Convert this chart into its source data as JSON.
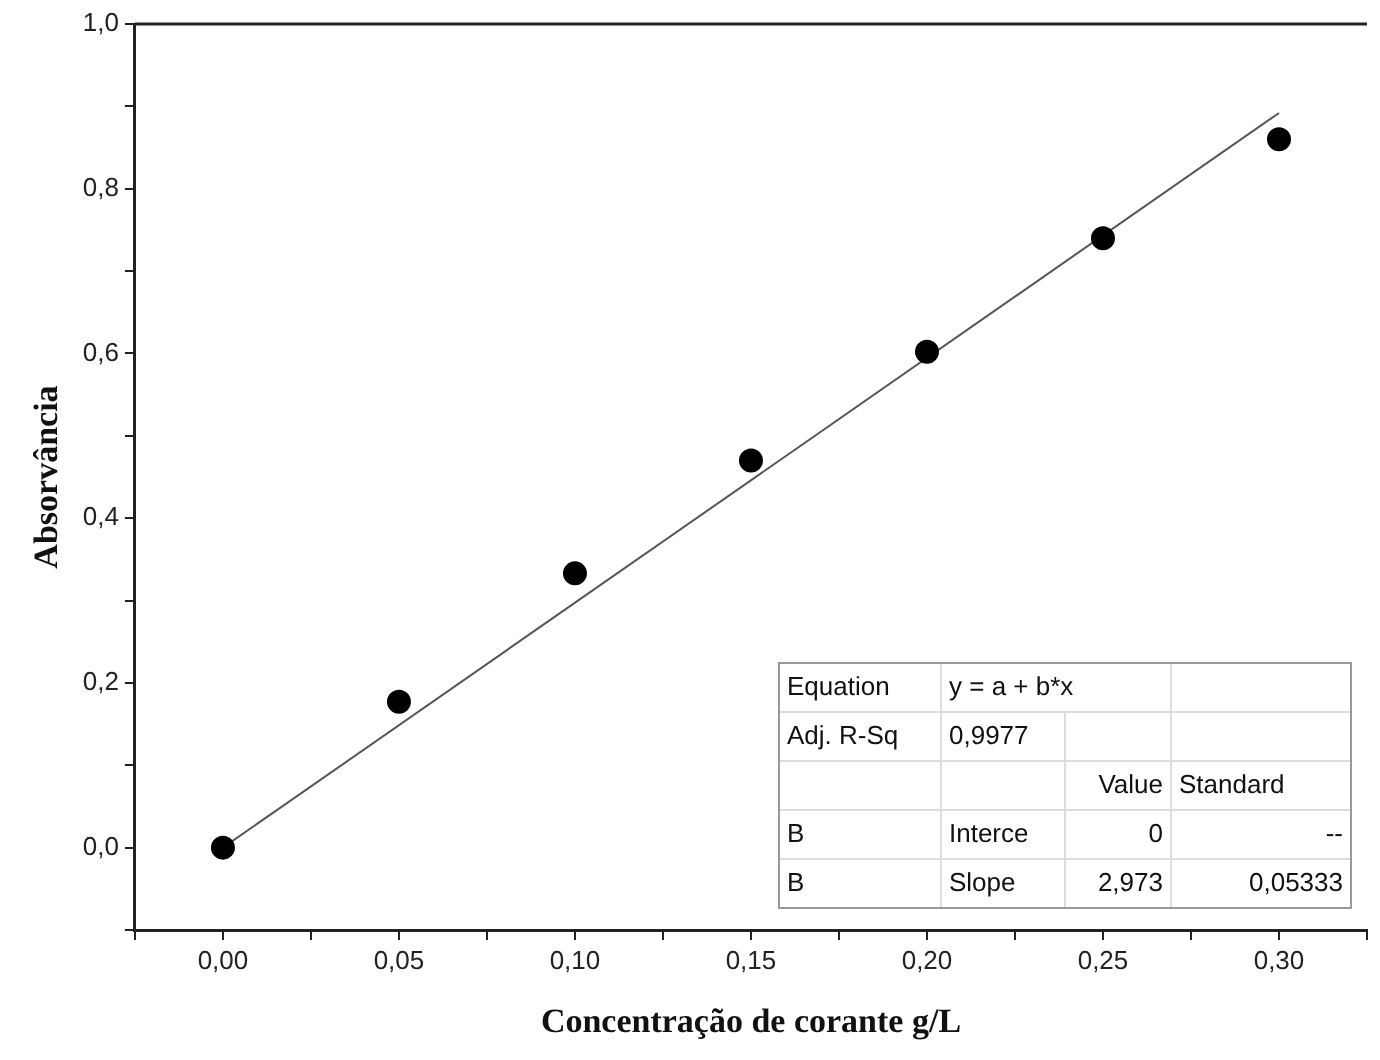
{
  "chart_data": {
    "type": "scatter",
    "xlabel": "Concentração de corante g/L",
    "ylabel": "Absorvância",
    "xlim": [
      -0.025,
      0.325
    ],
    "ylim": [
      -0.1,
      1.0
    ],
    "xticks": [
      {
        "value": -0.025,
        "label": null
      },
      {
        "value": 0,
        "label": "0,00"
      },
      {
        "value": 0.025,
        "label": null
      },
      {
        "value": 0.05,
        "label": "0,05"
      },
      {
        "value": 0.075,
        "label": null
      },
      {
        "value": 0.1,
        "label": "0,10"
      },
      {
        "value": 0.125,
        "label": null
      },
      {
        "value": 0.15,
        "label": "0,15"
      },
      {
        "value": 0.175,
        "label": null
      },
      {
        "value": 0.2,
        "label": "0,20"
      },
      {
        "value": 0.225,
        "label": null
      },
      {
        "value": 0.25,
        "label": "0,25"
      },
      {
        "value": 0.275,
        "label": null
      },
      {
        "value": 0.3,
        "label": "0,30"
      },
      {
        "value": 0.325,
        "label": null
      }
    ],
    "yticks": [
      {
        "value": -0.1,
        "label": null
      },
      {
        "value": 0,
        "label": "0,0"
      },
      {
        "value": 0.1,
        "label": null
      },
      {
        "value": 0.2,
        "label": "0,2"
      },
      {
        "value": 0.3,
        "label": null
      },
      {
        "value": 0.4,
        "label": "0,4"
      },
      {
        "value": 0.5,
        "label": null
      },
      {
        "value": 0.6,
        "label": "0,6"
      },
      {
        "value": 0.7,
        "label": null
      },
      {
        "value": 0.8,
        "label": "0,8"
      },
      {
        "value": 0.9,
        "label": null
      },
      {
        "value": 1.0,
        "label": "1,0"
      }
    ],
    "series": [
      {
        "color": "#000000",
        "x": [
          0,
          0.05,
          0.1,
          0.15,
          0.2,
          0.25,
          0.3
        ],
        "values": [
          0,
          0.177,
          0.333,
          0.47,
          0.602,
          0.74,
          0.86
        ]
      },
      {
        "type": "line",
        "marker": "none",
        "color": "#555555",
        "x": [
          0,
          0.3
        ],
        "values": [
          0,
          0.892
        ]
      }
    ],
    "marker": "circle",
    "grid": false,
    "legend": false,
    "annotations": [
      "Equation",
      "y = a + b*x",
      "Adj. R-Sq",
      "0,9977",
      "Value",
      "Standard",
      "B",
      "Interce",
      "0",
      "--",
      "B",
      "Slope",
      "2,973",
      "0,05333"
    ]
  }
}
